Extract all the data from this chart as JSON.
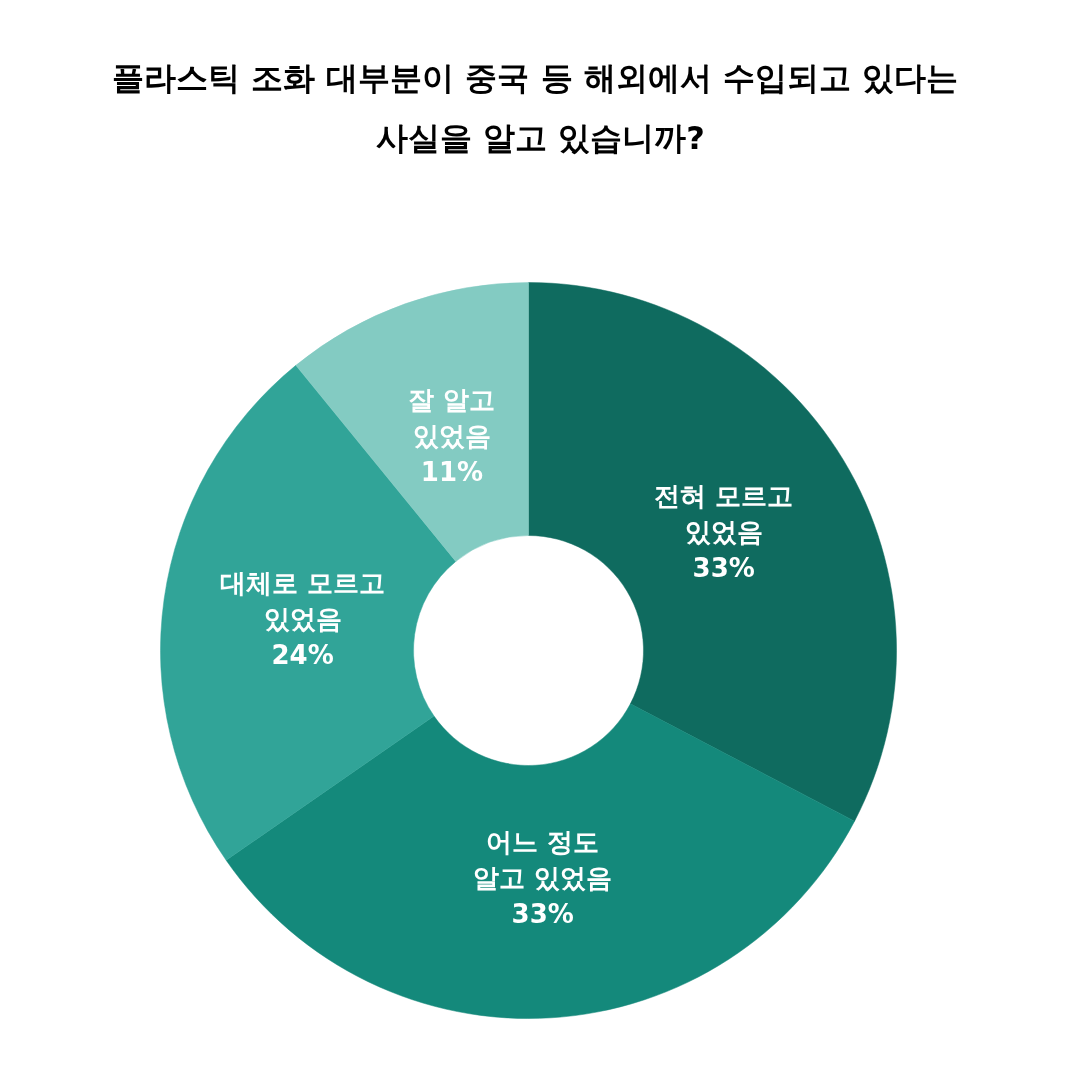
{
  "chart_data": {
    "type": "donut",
    "title": "플라스틱 조화 대부분이 중국 등 해외에서 수입되고  있다는\n사실을 알고 있습니까?",
    "categories": [
      "전혀 모르고\n있었음",
      "어느 정도\n알고 있었음",
      "대체로 모르고\n있었음",
      "잘 알고\n있었음"
    ],
    "values": [
      33,
      33,
      24,
      11
    ],
    "value_labels": [
      "33%",
      "33%",
      "24%",
      "11%"
    ],
    "colors": [
      "#0f6b5f",
      "#14897b",
      "#31a498",
      "#83cbc2"
    ],
    "legend": false
  }
}
